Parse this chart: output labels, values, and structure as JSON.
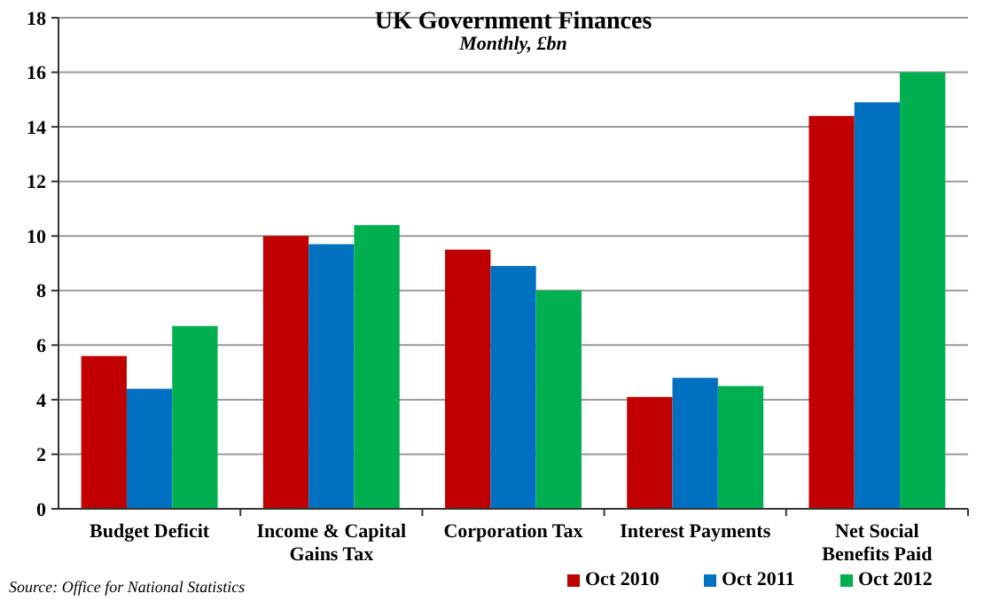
{
  "chart_data": {
    "type": "bar",
    "title": "UK Government Finances",
    "subtitle": "Monthly, £bn",
    "categories": [
      "Budget Deficit",
      "Income & Capital Gains Tax",
      "Corporation Tax",
      "Interest Payments",
      "Net Social Benefits Paid"
    ],
    "series": [
      {
        "name": "Oct 2010",
        "color": "#c00000",
        "values": [
          5.6,
          10.0,
          9.5,
          4.1,
          14.4
        ]
      },
      {
        "name": "Oct 2011",
        "color": "#0070c0",
        "values": [
          4.4,
          9.7,
          8.9,
          4.8,
          14.9
        ]
      },
      {
        "name": "Oct 2012",
        "color": "#00b050",
        "values": [
          6.7,
          10.4,
          8.0,
          4.5,
          16.0
        ]
      }
    ],
    "ylim": [
      0,
      18
    ],
    "yticks": [
      0,
      2,
      4,
      6,
      8,
      10,
      12,
      14,
      16,
      18
    ],
    "grid": "y",
    "legend": "bottom right",
    "annotations": [
      "Source: Office for National Statistics"
    ]
  }
}
